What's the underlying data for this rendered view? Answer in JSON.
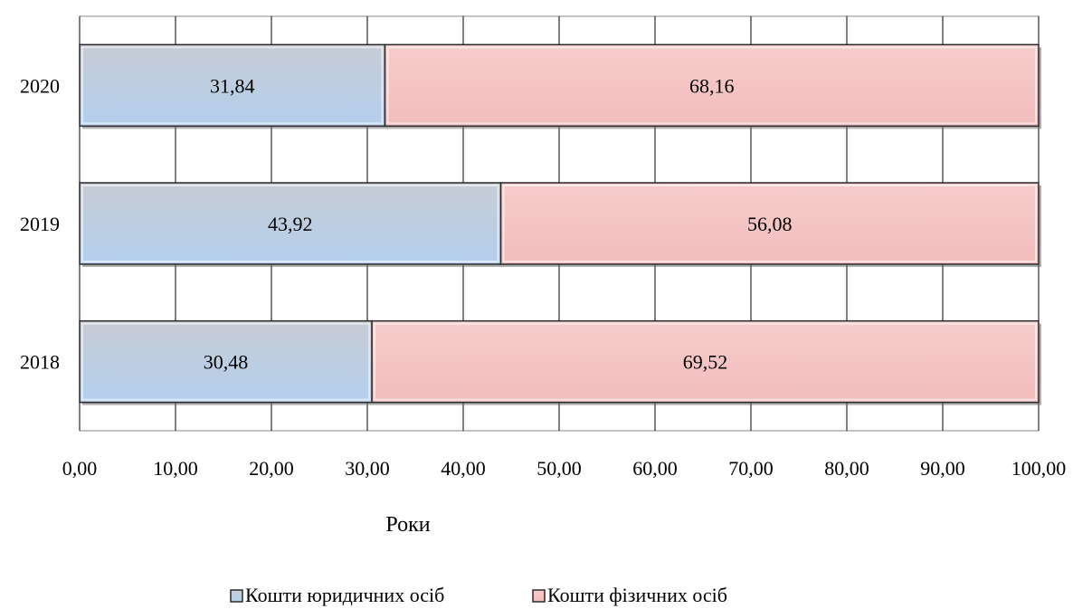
{
  "chart_data": {
    "type": "bar",
    "orientation": "horizontal",
    "stacked": true,
    "categories": [
      "2020",
      "2019",
      "2018"
    ],
    "series": [
      {
        "name": "Кошти юридичних осіб",
        "values": [
          31.84,
          43.92,
          30.48
        ],
        "labels": [
          "31,84",
          "43,92",
          "30,48"
        ]
      },
      {
        "name": "Кошти фізичних осіб",
        "values": [
          68.16,
          56.08,
          69.52
        ],
        "labels": [
          "68,16",
          "56,08",
          "69,52"
        ]
      }
    ],
    "x_ticks": [
      "0,00",
      "10,00",
      "20,00",
      "30,00",
      "40,00",
      "50,00",
      "60,00",
      "70,00",
      "80,00",
      "90,00",
      "100,00"
    ],
    "xlim": [
      0,
      100
    ],
    "xlabel": "Роки",
    "grid": true,
    "legend_position": "bottom",
    "colors": {
      "series1_top": "#c7ccd5",
      "series1_bottom": "#b4cfee",
      "series2_top": "#f7cccc",
      "series2_bottom": "#f1bcbc",
      "grid": "#000000"
    }
  }
}
